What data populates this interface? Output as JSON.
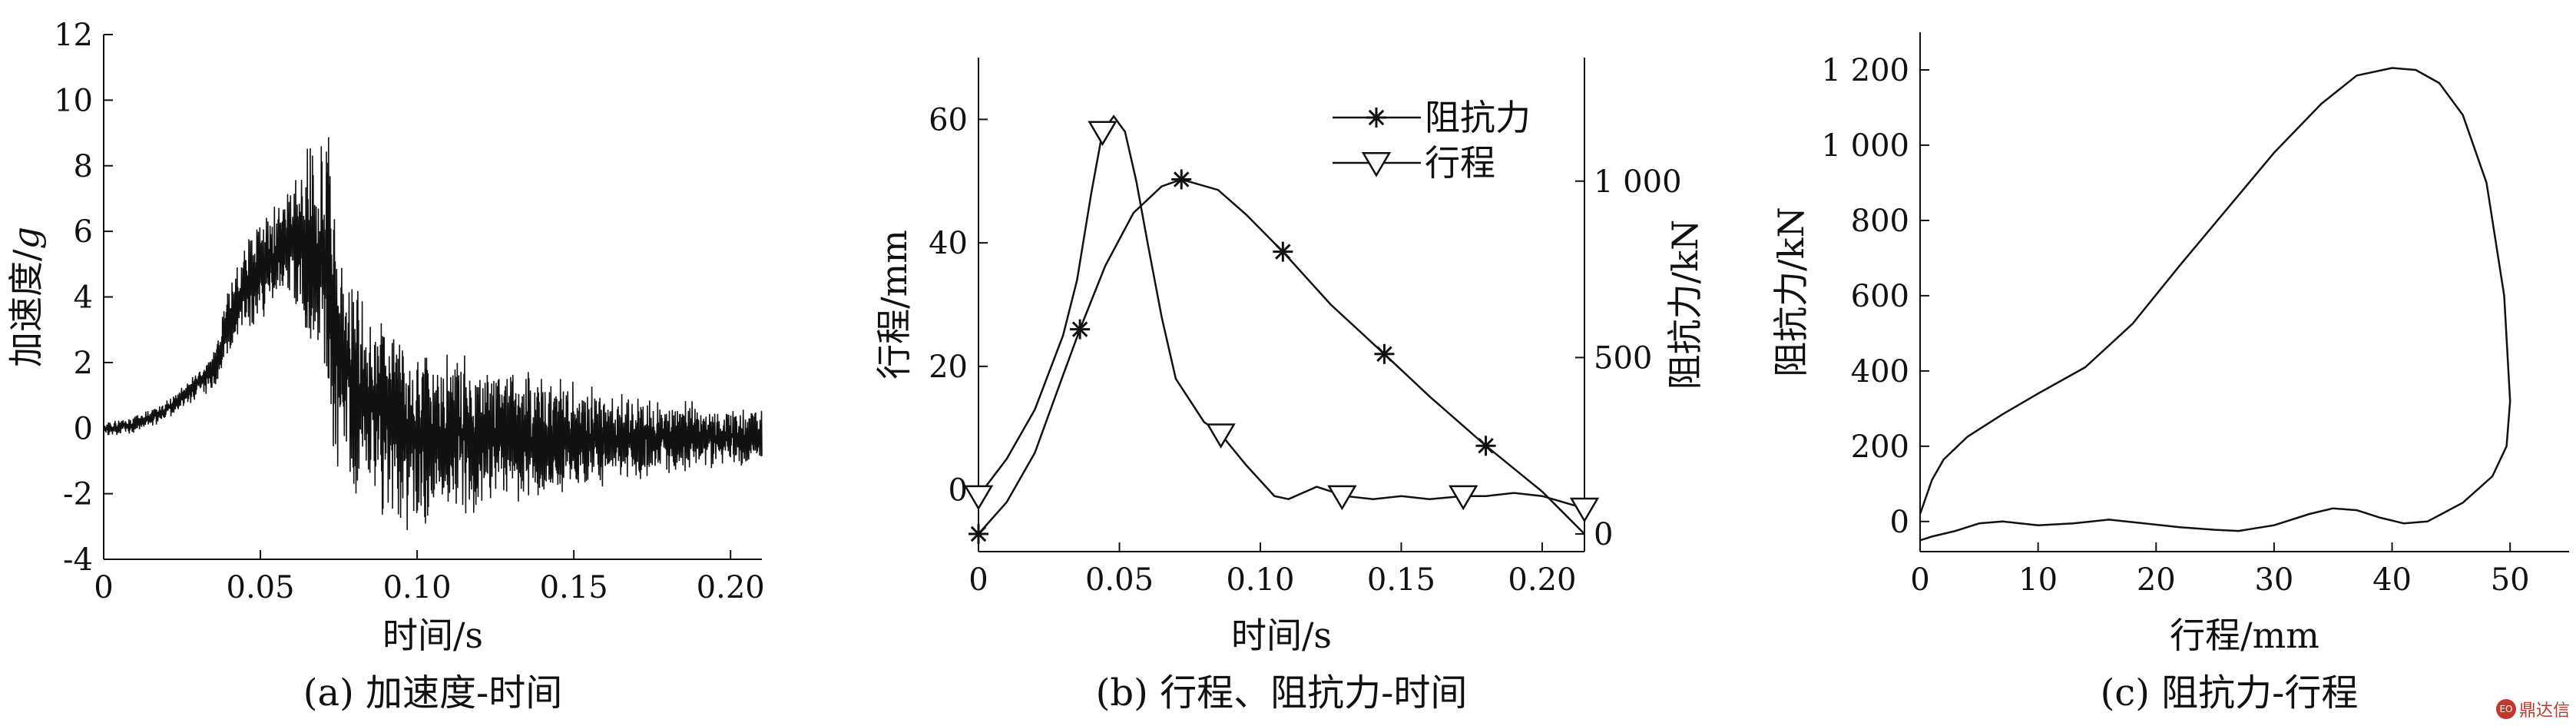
{
  "chart_data": [
    {
      "type": "line",
      "caption": "(a) 加速度-时间",
      "xlabel": "时间/s",
      "ylabel_main": "加速度/",
      "ylabel_unit": "g",
      "xlim": [
        0,
        0.21
      ],
      "ylim": [
        -4,
        12
      ],
      "xticks": [
        0,
        0.05,
        0.1,
        0.15,
        0.2
      ],
      "xtick_labels": [
        "0",
        "0.05",
        "0.10",
        "0.15",
        "0.20"
      ],
      "yticks": [
        -4,
        -2,
        0,
        2,
        4,
        6,
        8,
        10,
        12
      ],
      "ytick_labels": [
        "-4",
        "-2",
        "0",
        "2",
        "4",
        "6",
        "8",
        "10",
        "12"
      ],
      "grid": false,
      "series": [
        {
          "envelope_x": [
            0,
            0.01,
            0.02,
            0.03,
            0.035,
            0.04,
            0.045,
            0.05,
            0.055,
            0.06,
            0.065,
            0.07,
            0.072,
            0.075,
            0.08,
            0.09,
            0.1,
            0.11,
            0.12,
            0.13,
            0.14,
            0.15,
            0.16,
            0.17,
            0.18,
            0.19,
            0.2,
            0.21
          ],
          "envelope_upper": [
            0.2,
            0.4,
            0.9,
            1.8,
            2.4,
            4.5,
            5.8,
            6.4,
            7.1,
            7.6,
            8.9,
            9.4,
            10.1,
            6.2,
            4.8,
            3.7,
            3.2,
            2.6,
            2.3,
            2.0,
            1.7,
            1.5,
            1.3,
            1.1,
            1.0,
            0.9,
            0.8,
            0.7
          ],
          "envelope_lower": [
            -0.3,
            -0.2,
            0.2,
            0.9,
            1.1,
            1.9,
            2.7,
            3.2,
            3.6,
            3.8,
            2.2,
            0.6,
            -0.4,
            -1.6,
            -2.2,
            -2.9,
            -3.4,
            -3.0,
            -2.7,
            -2.6,
            -2.5,
            -2.2,
            -2.0,
            -1.8,
            -1.6,
            -1.4,
            -1.3,
            -1.2
          ]
        }
      ]
    },
    {
      "type": "line",
      "caption": "(b) 行程、阻抗力-时间",
      "xlabel": "时间/s",
      "ylabel_left": "行程/mm",
      "ylabel_right": "阻抗力/kN",
      "xlim": [
        0,
        0.215
      ],
      "ylim_left": [
        -10,
        70
      ],
      "ylim_right": [
        -50,
        1350
      ],
      "xticks": [
        0,
        0.05,
        0.1,
        0.15,
        0.2
      ],
      "xtick_labels": [
        "0",
        "0.05",
        "0.10",
        "0.15",
        "0.20"
      ],
      "yticks_left": [
        0,
        20,
        40,
        60
      ],
      "ytick_labels_left": [
        "0",
        "20",
        "40",
        "60"
      ],
      "yticks_right": [
        0,
        500,
        1000
      ],
      "ytick_labels_right": [
        "0",
        "500",
        "1 000"
      ],
      "legend_position": "top-right",
      "grid": false,
      "series": [
        {
          "name": "阻抗力",
          "marker": "asterisk",
          "axis": "right",
          "x": [
            0,
            0.01,
            0.02,
            0.03,
            0.036,
            0.045,
            0.055,
            0.065,
            0.072,
            0.085,
            0.095,
            0.108,
            0.125,
            0.144,
            0.16,
            0.18,
            0.2,
            0.215
          ],
          "y": [
            0,
            90,
            230,
            450,
            580,
            760,
            910,
            985,
            1005,
            975,
            905,
            800,
            650,
            510,
            390,
            250,
            120,
            0
          ],
          "markers_x": [
            0,
            0.036,
            0.072,
            0.108,
            0.144,
            0.18
          ],
          "markers_y": [
            0,
            580,
            1005,
            800,
            510,
            250
          ]
        },
        {
          "name": "行程",
          "marker": "triangle-down",
          "axis": "left",
          "x": [
            0,
            0.01,
            0.02,
            0.03,
            0.035,
            0.04,
            0.044,
            0.048,
            0.052,
            0.056,
            0.06,
            0.065,
            0.07,
            0.08,
            0.086,
            0.095,
            0.105,
            0.11,
            0.115,
            0.12,
            0.13,
            0.14,
            0.15,
            0.16,
            0.172,
            0.18,
            0.19,
            0.2,
            0.215
          ],
          "y": [
            -1,
            5,
            13,
            25,
            34,
            48,
            58,
            60.5,
            58,
            50,
            40,
            28,
            18,
            11,
            9,
            4,
            -1,
            -1.5,
            -0.5,
            0.5,
            -1,
            -1.5,
            -1,
            -1.5,
            -1,
            -1,
            -0.5,
            -1,
            -3
          ],
          "markers_x": [
            0,
            0.044,
            0.086,
            0.129,
            0.172,
            0.215
          ],
          "markers_y": [
            -1,
            58,
            9,
            -1,
            -1,
            -3
          ]
        }
      ]
    },
    {
      "type": "line",
      "caption": "(c) 阻抗力-行程",
      "xlabel": "行程/mm",
      "ylabel": "阻抗力/kN",
      "xlim": [
        0,
        55
      ],
      "ylim": [
        -80,
        1300
      ],
      "xticks": [
        0,
        10,
        20,
        30,
        40,
        50
      ],
      "xtick_labels": [
        "0",
        "10",
        "20",
        "30",
        "40",
        "50"
      ],
      "yticks": [
        0,
        200,
        400,
        600,
        800,
        1000,
        1200
      ],
      "ytick_labels": [
        "0",
        "200",
        "400",
        "600",
        "800",
        "1 000",
        "1 200"
      ],
      "grid": false,
      "series": [
        {
          "x": [
            0,
            1,
            2,
            4,
            7,
            10,
            14,
            18,
            22,
            26,
            30,
            34,
            37,
            40,
            42,
            44,
            46,
            48,
            49.5,
            50,
            49.7,
            48.5,
            46,
            43,
            41,
            39,
            37,
            35,
            33,
            30,
            27,
            25,
            22,
            19,
            16,
            13,
            10,
            7,
            5,
            3,
            1,
            0
          ],
          "y": [
            20,
            110,
            165,
            225,
            285,
            340,
            410,
            525,
            680,
            830,
            980,
            1110,
            1185,
            1205,
            1200,
            1165,
            1080,
            900,
            600,
            320,
            200,
            120,
            50,
            0,
            -5,
            10,
            30,
            35,
            20,
            -10,
            -25,
            -22,
            -15,
            -5,
            5,
            -5,
            -10,
            0,
            -5,
            -25,
            -40,
            -50
          ]
        }
      ]
    }
  ],
  "watermark": {
    "text": "鼎达信",
    "seal": "EO"
  }
}
